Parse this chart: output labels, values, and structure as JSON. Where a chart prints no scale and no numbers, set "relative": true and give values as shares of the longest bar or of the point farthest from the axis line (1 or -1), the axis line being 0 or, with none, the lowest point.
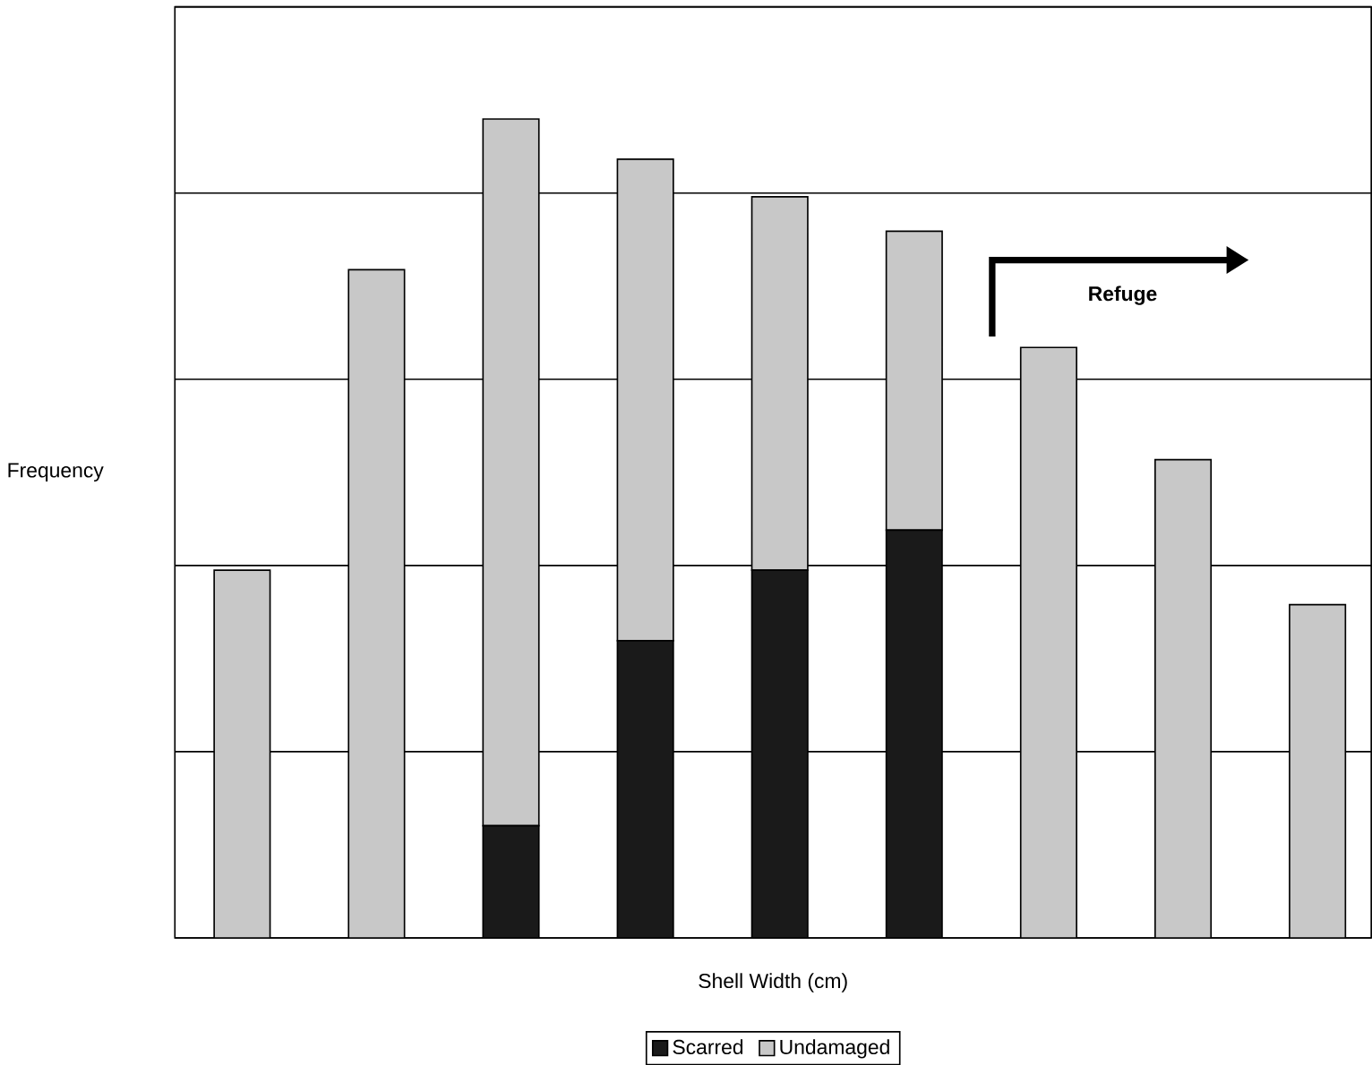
{
  "chart_data": {
    "type": "bar",
    "stacked": true,
    "relative": true,
    "xlabel": "Shell Width (cm)",
    "ylabel": "Frequency",
    "categories": [
      null,
      null,
      null,
      null,
      null,
      null,
      null,
      null,
      null
    ],
    "series": [
      {
        "name": "Scarred",
        "color": "#1a1a1a",
        "values": [
          0,
          0,
          0.137,
          0.363,
          0.449,
          0.498,
          0,
          0,
          0
        ]
      },
      {
        "name": "Undamaged",
        "color": "#c8c8c8",
        "values": [
          0.449,
          0.816,
          0.863,
          0.588,
          0.456,
          0.365,
          0.721,
          0.584,
          0.407
        ]
      }
    ],
    "grid": "y",
    "legend": "bottom",
    "annotations": [
      "Refuge"
    ]
  }
}
